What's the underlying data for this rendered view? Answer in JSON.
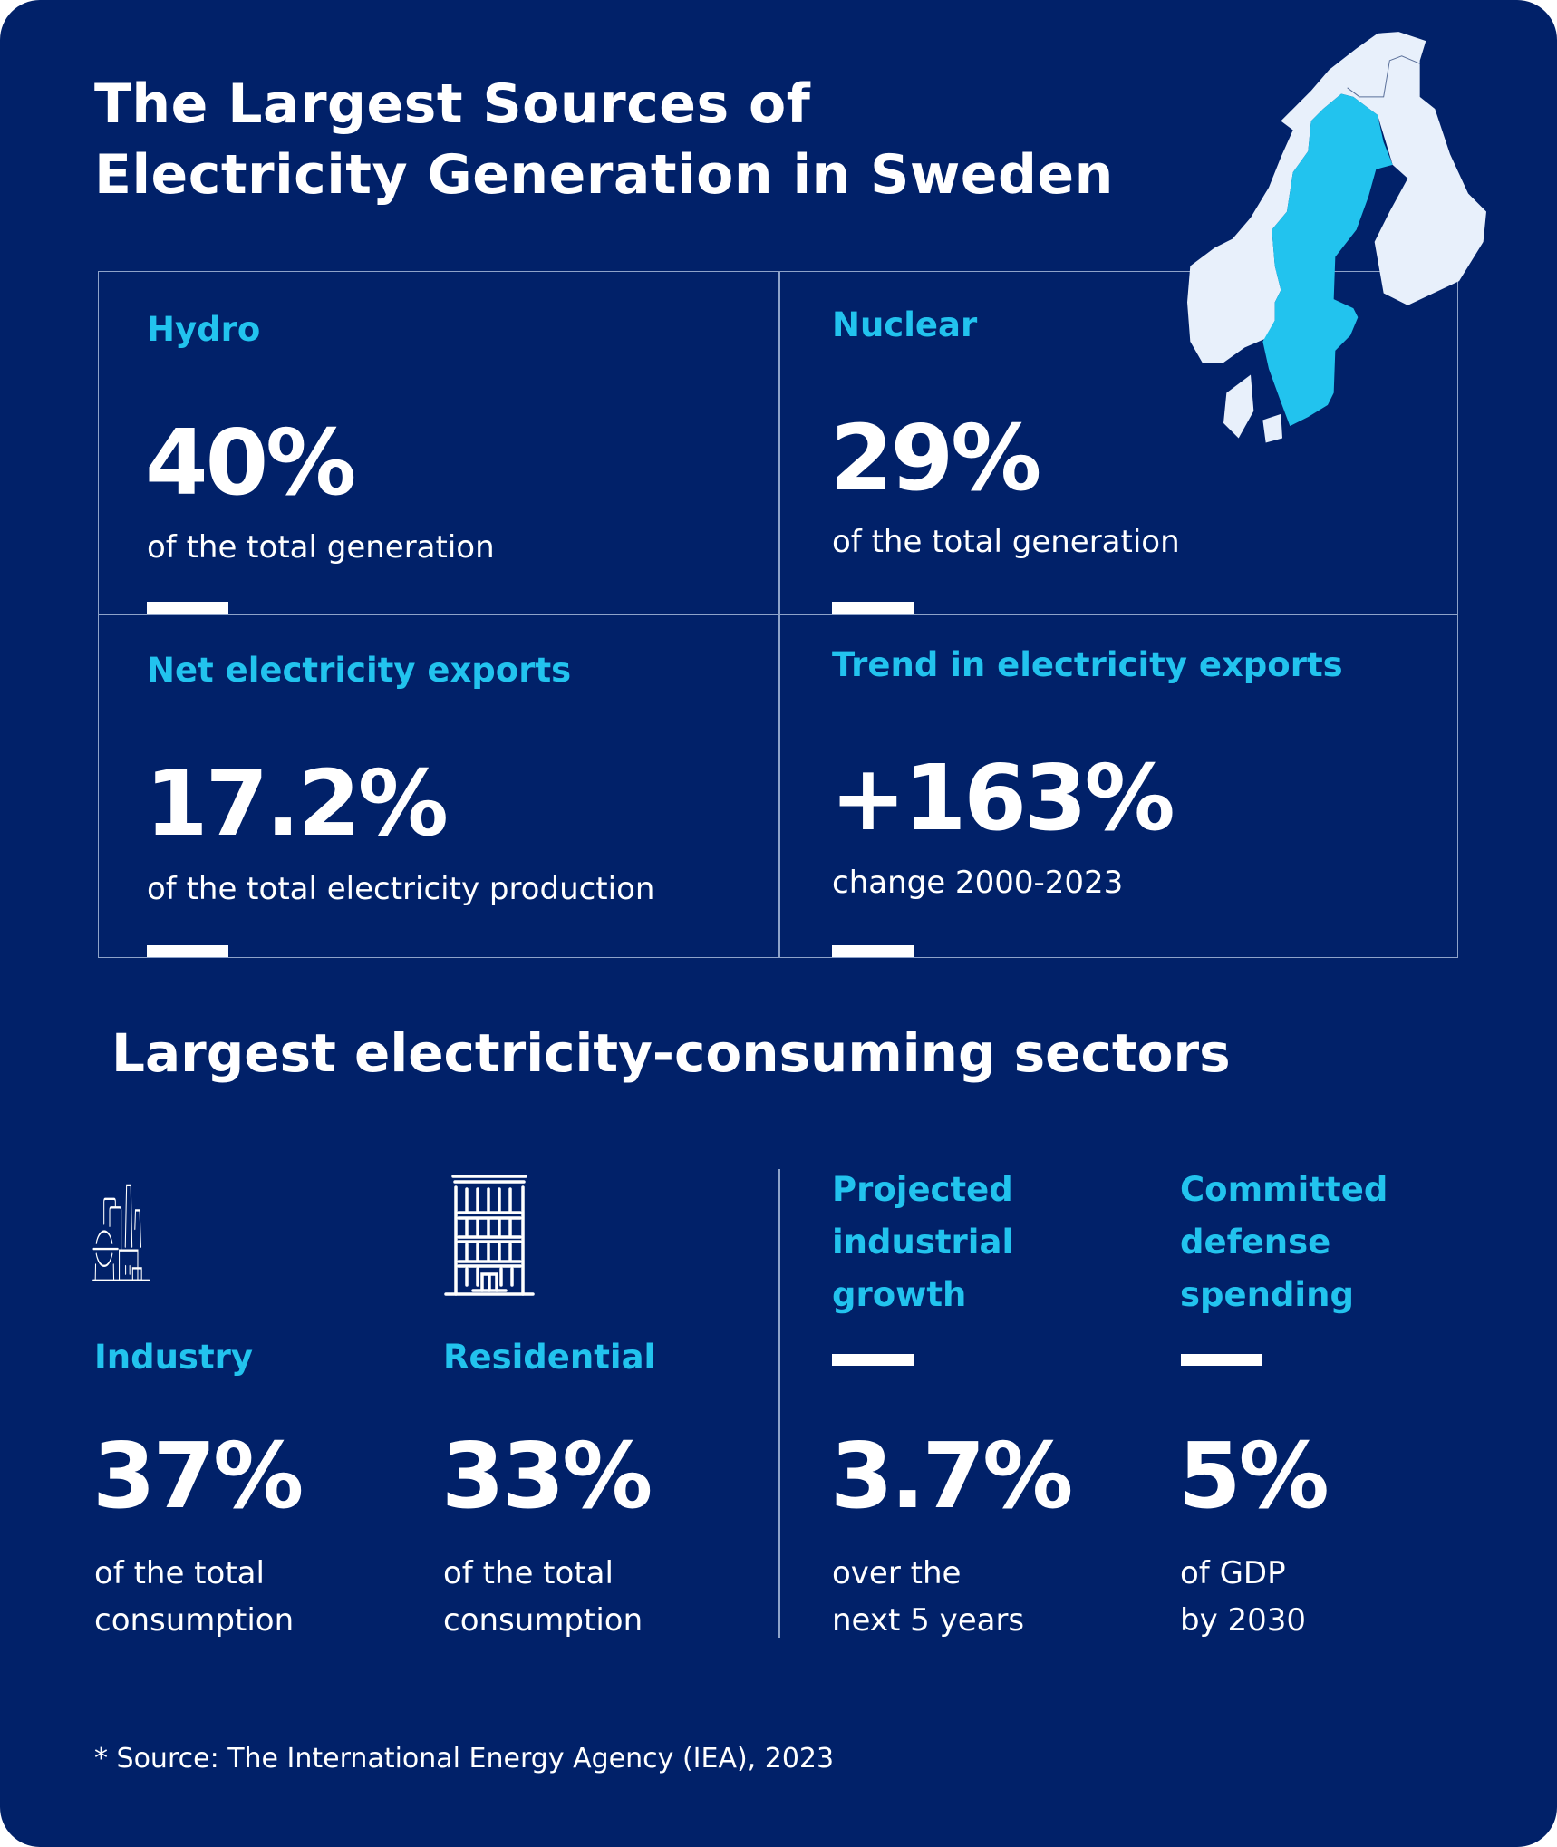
{
  "title": {
    "line1": "The Largest Sources of",
    "line2": "Electricity Generation in Sweden"
  },
  "colors": {
    "background": "#012169",
    "accent": "#22c3ee",
    "map_land": "#e8f0fb",
    "map_sweden": "#22c3ee"
  },
  "map": {
    "icon": "nordic-map-sweden-highlighted"
  },
  "generation": [
    {
      "label": "Hydro",
      "value": "40%",
      "desc": "of the total generation"
    },
    {
      "label": "Nuclear",
      "value": "29%",
      "desc": "of the total generation"
    },
    {
      "label": "Net electricity exports",
      "value": "17.2%",
      "desc": "of the total electricity production"
    },
    {
      "label": "Trend in electricity exports",
      "value": "+163%",
      "desc": "change 2000-2023"
    }
  ],
  "sectors_heading": "Largest electricity-consuming sectors",
  "sectors": [
    {
      "icon": "factory-icon",
      "label": "Industry",
      "value": "37%",
      "desc1": "of the total",
      "desc2": "consumption"
    },
    {
      "icon": "building-icon",
      "label": "Residential",
      "value": "33%",
      "desc1": "of the total",
      "desc2": "consumption"
    }
  ],
  "outlook": [
    {
      "label1": "Projected",
      "label2": "industrial",
      "label3": "growth",
      "value": "3.7%",
      "desc1": "over the",
      "desc2": "next 5 years"
    },
    {
      "label1": "Committed",
      "label2": "defense",
      "label3": "spending",
      "value": "5%",
      "desc1": "of GDP",
      "desc2": "by 2030"
    }
  ],
  "source": "* Source: The International Energy Agency (IEA), 2023"
}
